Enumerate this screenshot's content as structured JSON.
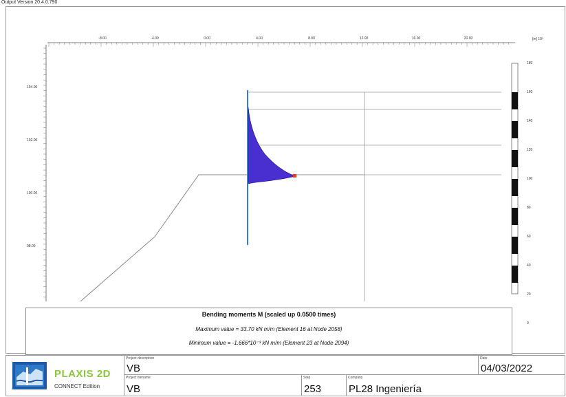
{
  "window": {
    "title": "Output Version 20.4.0.790"
  },
  "x_axis": {
    "ticks": [
      "-8.00",
      "-4.00",
      "0.00",
      "4.00",
      "8.00",
      "12.00",
      "16.00",
      "20.00"
    ],
    "unit": "[m] 10³"
  },
  "y_axis": {
    "ticks": [
      "104.00",
      "102.00",
      "100.00",
      "98.00"
    ]
  },
  "scale_bar": {
    "labels": [
      "180",
      "160",
      "140",
      "120",
      "100",
      "80",
      "60",
      "40",
      "20",
      "0"
    ]
  },
  "legend": {
    "title": "Bending moments M (scaled up 0.0500 times)",
    "max": "Maximum value = 33.70 kN m/m (Element 16 at Node 2058)",
    "min": "Minimum value = -1.666*10⁻³ kN m/m (Element 23 at Node 2094)"
  },
  "colors": {
    "moment_fill": "#4a2fd0",
    "wall": "#3a7ad6",
    "max_marker": "#e04020"
  },
  "footer": {
    "logo_text": "PLAXIS 2D",
    "logo_sub": "CONNECT Edition",
    "project_description": {
      "label": "Project description",
      "value": "VB"
    },
    "date": {
      "label": "Date",
      "value": "04/03/2022"
    },
    "project_filename": {
      "label": "Project filename",
      "value": "VB"
    },
    "step": {
      "label": "Step",
      "value": "253"
    },
    "company": {
      "label": "Company",
      "value": "PL28 Ingeniería"
    }
  }
}
